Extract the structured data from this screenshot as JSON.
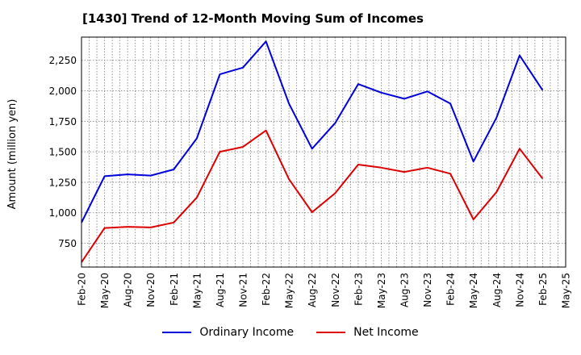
{
  "chart_data": {
    "type": "line",
    "title": "[1430]  Trend of 12-Month Moving Sum of Incomes",
    "xlabel": "",
    "ylabel": "Amount (million yen)",
    "ylim": [
      555,
      2440
    ],
    "yticks": [
      750,
      1000,
      1250,
      1500,
      1750,
      2000,
      2250
    ],
    "ytick_labels": [
      "750",
      "1,000",
      "1,250",
      "1,500",
      "1,750",
      "2,000",
      "2,250"
    ],
    "categories": [
      "Feb-20",
      "May-20",
      "Aug-20",
      "Nov-20",
      "Feb-21",
      "May-21",
      "Aug-21",
      "Nov-21",
      "Feb-22",
      "May-22",
      "Aug-22",
      "Nov-22",
      "Feb-23",
      "May-23",
      "Aug-23",
      "Nov-23",
      "Feb-24",
      "May-24",
      "Aug-24",
      "Nov-24",
      "Feb-25",
      "May-25"
    ],
    "grid": true,
    "legend_position": "bottom",
    "series": [
      {
        "name": "Ordinary Income",
        "color": "#0000dd",
        "values": [
          920,
          1300,
          1315,
          1305,
          1355,
          1610,
          2135,
          2190,
          2405,
          1895,
          1525,
          1735,
          2055,
          1985,
          1935,
          1995,
          1895,
          1420,
          1780,
          2290,
          2005,
          null
        ]
      },
      {
        "name": "Net Income",
        "color": "#dd0000",
        "values": [
          595,
          875,
          885,
          880,
          920,
          1125,
          1500,
          1540,
          1675,
          1275,
          1005,
          1160,
          1395,
          1370,
          1335,
          1370,
          1320,
          945,
          1170,
          1525,
          1280,
          null
        ]
      }
    ]
  }
}
